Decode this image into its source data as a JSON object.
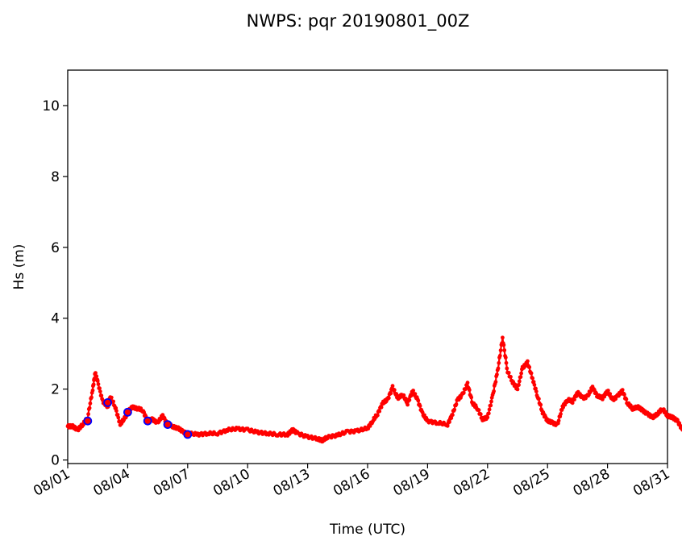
{
  "chart_data": {
    "type": "line",
    "title": "NWPS: pqr 20190801_00Z",
    "xlabel": "Time (UTC)",
    "ylabel": "Hs (m)",
    "x_start": "08/01",
    "x_end": "08/31",
    "xlim": [
      "08/01",
      "08/31"
    ],
    "ylim": [
      -0.1,
      11
    ],
    "x_ticks": [
      "08/01",
      "08/04",
      "08/07",
      "08/10",
      "08/13",
      "08/16",
      "08/19",
      "08/22",
      "08/25",
      "08/28",
      "08/31"
    ],
    "y_ticks": [
      0,
      2,
      4,
      6,
      8,
      10
    ],
    "grid": false,
    "series": [
      {
        "role": "model",
        "color": "#ff0000",
        "marker": "dot",
        "points": [
          [
            "08/01 00:00",
            0.95
          ],
          [
            "08/01 06:00",
            0.95
          ],
          [
            "08/01 12:00",
            0.85
          ],
          [
            "08/01 18:00",
            1.0
          ],
          [
            "08/02 00:00",
            1.2
          ],
          [
            "08/02 06:00",
            2.0
          ],
          [
            "08/02 09:00",
            2.45
          ],
          [
            "08/02 12:00",
            2.2
          ],
          [
            "08/02 18:00",
            1.65
          ],
          [
            "08/03 00:00",
            1.5
          ],
          [
            "08/03 03:00",
            1.8
          ],
          [
            "08/03 09:00",
            1.5
          ],
          [
            "08/03 15:00",
            1.0
          ],
          [
            "08/03 21:00",
            1.2
          ],
          [
            "08/04 00:00",
            1.35
          ],
          [
            "08/04 06:00",
            1.5
          ],
          [
            "08/04 12:00",
            1.45
          ],
          [
            "08/04 18:00",
            1.4
          ],
          [
            "08/05 00:00",
            1.1
          ],
          [
            "08/05 06:00",
            1.15
          ],
          [
            "08/05 12:00",
            1.05
          ],
          [
            "08/05 18:00",
            1.25
          ],
          [
            "08/06 00:00",
            1.0
          ],
          [
            "08/06 06:00",
            0.95
          ],
          [
            "08/06 12:00",
            0.9
          ],
          [
            "08/06 18:00",
            0.8
          ],
          [
            "08/07 00:00",
            0.75
          ],
          [
            "08/07 12:00",
            0.72
          ],
          [
            "08/08 00:00",
            0.75
          ],
          [
            "08/08 12:00",
            0.75
          ],
          [
            "08/09 00:00",
            0.85
          ],
          [
            "08/09 12:00",
            0.88
          ],
          [
            "08/10 00:00",
            0.85
          ],
          [
            "08/10 12:00",
            0.78
          ],
          [
            "08/11 00:00",
            0.75
          ],
          [
            "08/11 12:00",
            0.72
          ],
          [
            "08/12 00:00",
            0.72
          ],
          [
            "08/12 06:00",
            0.85
          ],
          [
            "08/12 12:00",
            0.75
          ],
          [
            "08/13 00:00",
            0.65
          ],
          [
            "08/13 12:00",
            0.6
          ],
          [
            "08/13 18:00",
            0.55
          ],
          [
            "08/14 00:00",
            0.65
          ],
          [
            "08/14 12:00",
            0.7
          ],
          [
            "08/15 00:00",
            0.8
          ],
          [
            "08/15 12:00",
            0.82
          ],
          [
            "08/16 00:00",
            0.9
          ],
          [
            "08/16 06:00",
            1.1
          ],
          [
            "08/16 12:00",
            1.3
          ],
          [
            "08/16 18:00",
            1.6
          ],
          [
            "08/17 00:00",
            1.7
          ],
          [
            "08/17 06:00",
            2.05
          ],
          [
            "08/17 12:00",
            1.75
          ],
          [
            "08/17 18:00",
            1.85
          ],
          [
            "08/18 00:00",
            1.6
          ],
          [
            "08/18 06:00",
            1.95
          ],
          [
            "08/18 12:00",
            1.7
          ],
          [
            "08/18 18:00",
            1.3
          ],
          [
            "08/19 00:00",
            1.1
          ],
          [
            "08/19 12:00",
            1.05
          ],
          [
            "08/20 00:00",
            1.0
          ],
          [
            "08/20 06:00",
            1.3
          ],
          [
            "08/20 12:00",
            1.7
          ],
          [
            "08/20 18:00",
            1.85
          ],
          [
            "08/21 00:00",
            2.15
          ],
          [
            "08/21 06:00",
            1.6
          ],
          [
            "08/21 12:00",
            1.45
          ],
          [
            "08/21 18:00",
            1.15
          ],
          [
            "08/22 00:00",
            1.2
          ],
          [
            "08/22 06:00",
            1.8
          ],
          [
            "08/22 12:00",
            2.5
          ],
          [
            "08/22 18:00",
            3.45
          ],
          [
            "08/23 00:00",
            2.5
          ],
          [
            "08/23 06:00",
            2.2
          ],
          [
            "08/23 12:00",
            2.0
          ],
          [
            "08/23 18:00",
            2.6
          ],
          [
            "08/24 00:00",
            2.75
          ],
          [
            "08/24 06:00",
            2.3
          ],
          [
            "08/24 12:00",
            1.8
          ],
          [
            "08/24 18:00",
            1.35
          ],
          [
            "08/25 00:00",
            1.1
          ],
          [
            "08/25 06:00",
            1.05
          ],
          [
            "08/25 12:00",
            1.0
          ],
          [
            "08/25 18:00",
            1.5
          ],
          [
            "08/26 00:00",
            1.7
          ],
          [
            "08/26 06:00",
            1.65
          ],
          [
            "08/26 12:00",
            1.9
          ],
          [
            "08/26 18:00",
            1.75
          ],
          [
            "08/27 00:00",
            1.8
          ],
          [
            "08/27 06:00",
            2.05
          ],
          [
            "08/27 12:00",
            1.8
          ],
          [
            "08/27 18:00",
            1.75
          ],
          [
            "08/28 00:00",
            1.95
          ],
          [
            "08/28 06:00",
            1.7
          ],
          [
            "08/28 12:00",
            1.8
          ],
          [
            "08/28 18:00",
            1.95
          ],
          [
            "08/29 00:00",
            1.6
          ],
          [
            "08/29 06:00",
            1.45
          ],
          [
            "08/29 12:00",
            1.5
          ],
          [
            "08/29 18:00",
            1.4
          ],
          [
            "08/30 00:00",
            1.3
          ],
          [
            "08/30 06:00",
            1.2
          ],
          [
            "08/30 12:00",
            1.3
          ],
          [
            "08/30 18:00",
            1.45
          ],
          [
            "08/31 00:00",
            1.25
          ],
          [
            "08/31 06:00",
            1.2
          ],
          [
            "08/31 12:00",
            1.1
          ],
          [
            "08/31 18:00",
            0.85
          ]
        ]
      },
      {
        "role": "observed",
        "color": "#0000ff",
        "fill": "#ff0000",
        "marker": "circle",
        "points": [
          [
            "08/02 00:00",
            1.1
          ],
          [
            "08/03 00:00",
            1.62
          ],
          [
            "08/04 00:00",
            1.35
          ],
          [
            "08/05 00:00",
            1.1
          ],
          [
            "08/06 00:00",
            1.0
          ],
          [
            "08/07 00:00",
            0.72
          ]
        ]
      }
    ]
  }
}
